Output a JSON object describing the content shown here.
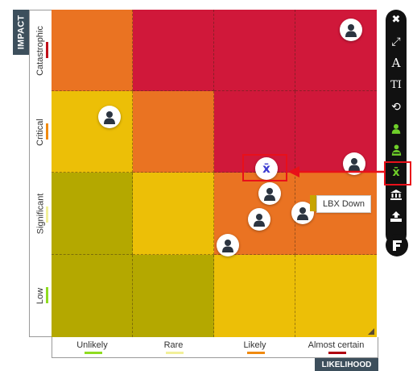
{
  "axes": {
    "impact_title": "IMPACT",
    "likelihood_title": "LIKELIHOOD",
    "impact_levels": [
      {
        "label": "Catastrophic",
        "color": "#c0101a"
      },
      {
        "label": "Critical",
        "color": "#f08a10"
      },
      {
        "label": "Significant",
        "color": "#f2f09a"
      },
      {
        "label": "Low",
        "color": "#8fdc20"
      }
    ],
    "likelihood_levels": [
      {
        "label": "Unlikely",
        "color": "#8fdc20"
      },
      {
        "label": "Rare",
        "color": "#f2f09a"
      },
      {
        "label": "Likely",
        "color": "#f08a10"
      },
      {
        "label": "Almost certain",
        "color": "#b00010"
      }
    ]
  },
  "grid_colors": [
    [
      "#ea7322",
      "#d0183a",
      "#d0183a",
      "#d0183a"
    ],
    [
      "#ecbf07",
      "#ea7322",
      "#d0183a",
      "#d0183a"
    ],
    [
      "#b4a800",
      "#ecbf07",
      "#ea7322",
      "#ea7322"
    ],
    [
      "#b4a800",
      "#b4a800",
      "#ecbf07",
      "#ecbf07"
    ]
  ],
  "tooltip": {
    "text": "LBX Down"
  },
  "aggregate_marker": {
    "symbol": "x̄"
  },
  "toolbar": {
    "items": [
      {
        "name": "close-icon",
        "glyph": "✖"
      },
      {
        "name": "expand-icon",
        "glyph": "⤢"
      },
      {
        "name": "font-size-icon",
        "glyph": "A"
      },
      {
        "name": "text-title-icon",
        "glyph": "TI"
      },
      {
        "name": "history-icon",
        "glyph": "⟲"
      },
      {
        "name": "user-icon",
        "glyph": "👤"
      },
      {
        "name": "user-group-icon",
        "glyph": "👥"
      },
      {
        "name": "mean-icon",
        "glyph": "x̄"
      },
      {
        "name": "bank-icon",
        "glyph": "🏛"
      },
      {
        "name": "upload-icon",
        "glyph": "⇪"
      }
    ]
  }
}
